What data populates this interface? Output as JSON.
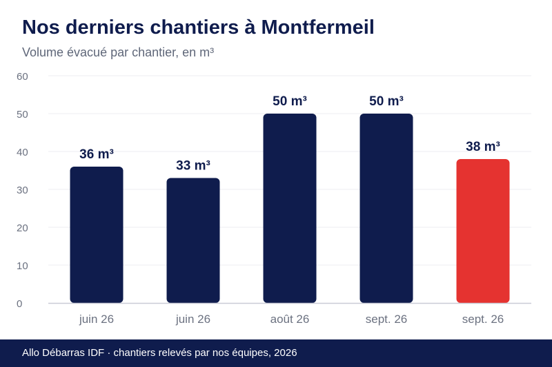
{
  "header": {
    "title": "Nos derniers chantiers à Montfermeil",
    "subtitle": "Volume évacué par chantier, en m³"
  },
  "footer": {
    "text": "Allo Débarras IDF · chantiers relevés par nos équipes, 2026"
  },
  "colors": {
    "bar": "#0f1c4d",
    "highlight": "#e53330",
    "grid": "#ececf0",
    "axis": "#c9cbd6",
    "tick_text": "#6b7180",
    "label_text": "#0f1c4d"
  },
  "chart_data": {
    "type": "bar",
    "title": "Nos derniers chantiers à Montfermeil",
    "subtitle": "Volume évacué par chantier, en m³",
    "categories": [
      "juin 26",
      "juin 26",
      "août 26",
      "sept. 26",
      "sept. 26"
    ],
    "values": [
      36,
      33,
      50,
      50,
      38
    ],
    "data_labels": [
      "36 m³",
      "33 m³",
      "50 m³",
      "50 m³",
      "38 m³"
    ],
    "highlight_index": 4,
    "ylim": [
      0,
      60
    ],
    "yticks": [
      0,
      10,
      20,
      30,
      40,
      50,
      60
    ],
    "xlabel": "",
    "ylabel": "",
    "grid": true,
    "legend": "none"
  }
}
